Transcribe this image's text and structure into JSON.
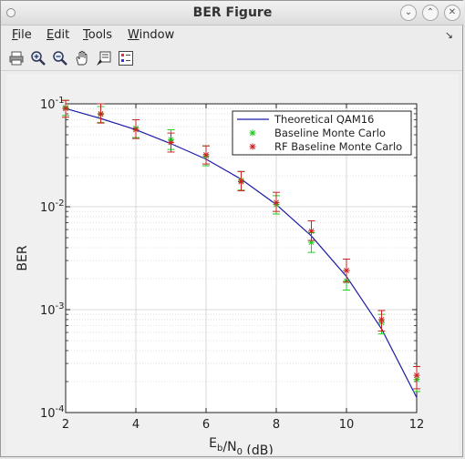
{
  "window": {
    "title": "BER Figure"
  },
  "menu": [
    {
      "label": "File",
      "key": "F"
    },
    {
      "label": "Edit",
      "key": "E"
    },
    {
      "label": "Tools",
      "key": "T"
    },
    {
      "label": "Window",
      "key": "W"
    }
  ],
  "toolbar": [
    "print-icon",
    "zoom-in-icon",
    "zoom-out-icon",
    "pan-hand-icon",
    "data-cursor-icon",
    "legend-icon"
  ],
  "chart_data": {
    "type": "line",
    "title": "",
    "xlabel": "E_b/N_0 (dB)",
    "ylabel": "BER",
    "xlim": [
      2,
      12
    ],
    "ylim": [
      0.0001,
      0.1
    ],
    "yscale": "log",
    "grid": true,
    "legend_position": "top-right",
    "x_ticks": [
      "2",
      "4",
      "6",
      "8",
      "10",
      "12"
    ],
    "y_ticks": [
      {
        "value": 0.1,
        "base": "10",
        "exp": "-1"
      },
      {
        "value": 0.01,
        "base": "10",
        "exp": "-2"
      },
      {
        "value": 0.001,
        "base": "10",
        "exp": "-3"
      },
      {
        "value": 0.0001,
        "base": "10",
        "exp": "-4"
      }
    ],
    "series": [
      {
        "name": "Theoretical QAM16",
        "style": "line",
        "color": "#1a1aa6",
        "x": [
          2,
          3,
          4,
          5,
          6,
          7,
          8,
          9,
          10,
          11,
          12
        ],
        "y": [
          0.09,
          0.072,
          0.056,
          0.041,
          0.029,
          0.0185,
          0.0105,
          0.0052,
          0.0021,
          0.00065,
          0.00014
        ]
      },
      {
        "name": "Baseline Monte Carlo",
        "style": "marker",
        "marker": "*",
        "color": "#22cc22",
        "x": [
          2,
          3,
          4,
          5,
          6,
          7,
          8,
          9,
          10,
          11,
          12
        ],
        "y": [
          0.092,
          0.079,
          0.058,
          0.045,
          0.031,
          0.018,
          0.0105,
          0.0045,
          0.0019,
          0.00075,
          0.00021
        ],
        "err_low": [
          0.077,
          0.066,
          0.047,
          0.036,
          0.025,
          0.0145,
          0.0085,
          0.0036,
          0.00155,
          0.00058,
          0.00016
        ],
        "err_high": [
          0.108,
          0.094,
          0.07,
          0.056,
          0.039,
          0.022,
          0.0128,
          0.0056,
          0.0024,
          0.0009,
          0.00028
        ]
      },
      {
        "name": "RF Baseline Monte Carlo",
        "style": "marker",
        "marker": "*",
        "color": "#cc2222",
        "x": [
          2,
          3,
          4,
          5,
          6,
          7,
          8,
          9,
          10,
          11,
          12
        ],
        "y": [
          0.09,
          0.08,
          0.056,
          0.042,
          0.032,
          0.0175,
          0.011,
          0.0058,
          0.0024,
          0.0008,
          0.00023
        ],
        "err_low": [
          0.074,
          0.065,
          0.046,
          0.034,
          0.026,
          0.0143,
          0.009,
          0.0047,
          0.00185,
          0.00062,
          0.00017
        ],
        "err_high": [
          0.108,
          0.1,
          0.07,
          0.052,
          0.039,
          0.022,
          0.0138,
          0.0073,
          0.0031,
          0.00098,
          0.00028
        ]
      }
    ]
  }
}
